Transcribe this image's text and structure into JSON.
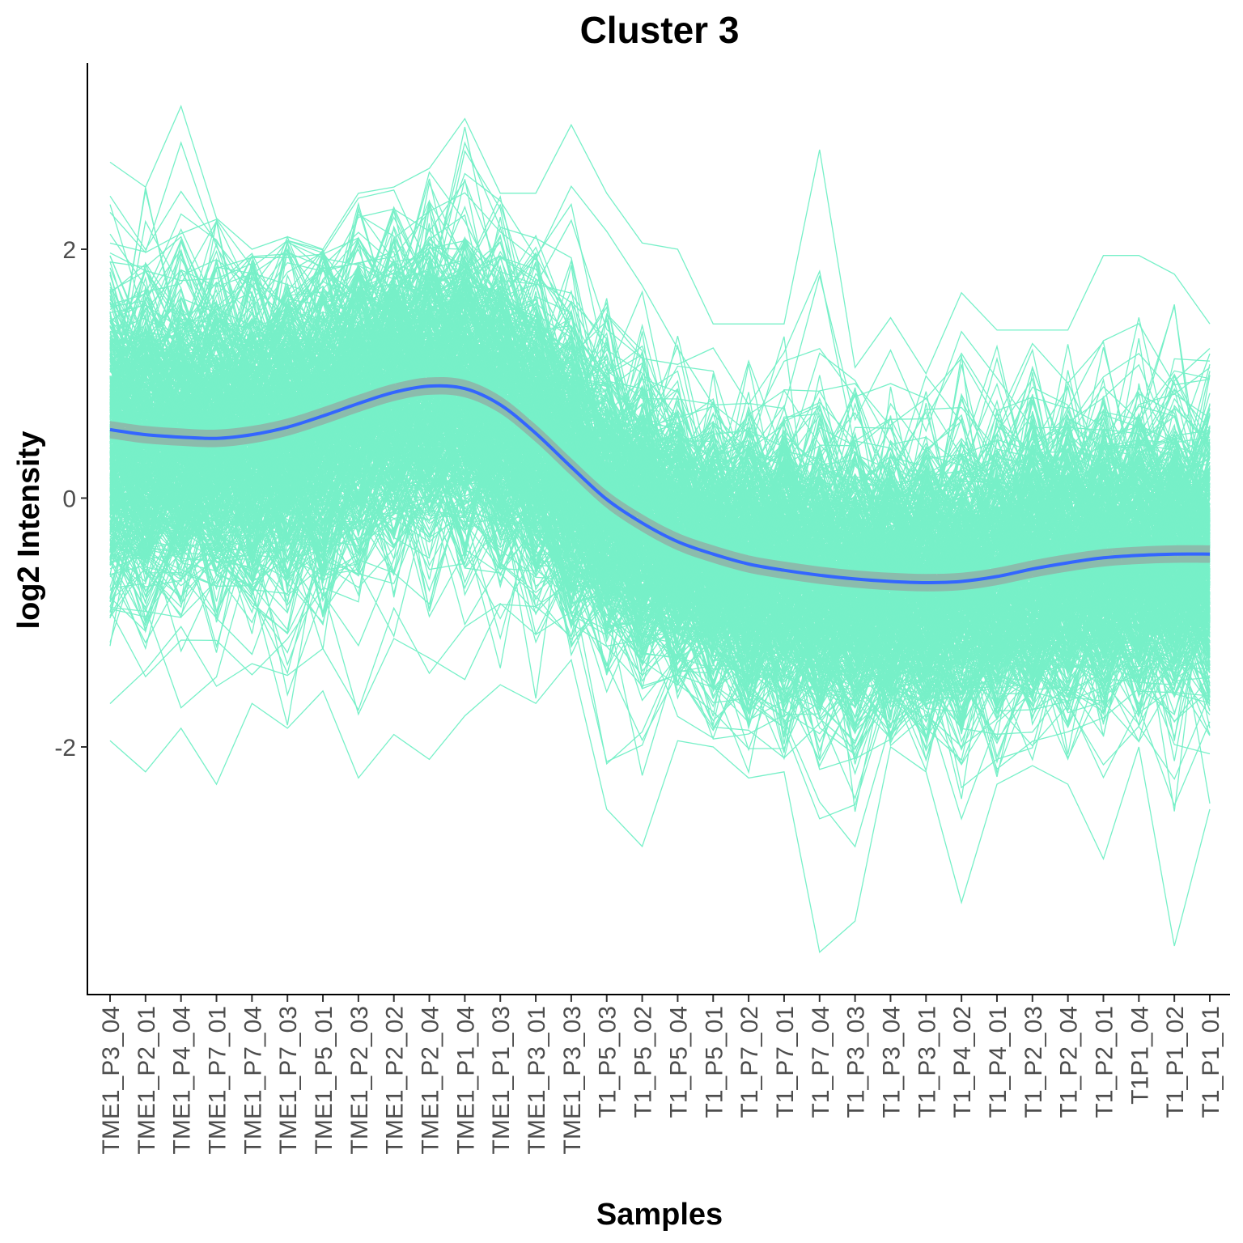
{
  "chart_data": {
    "type": "line",
    "title": "Cluster 3",
    "xlabel": "Samples",
    "ylabel": "log2 Intensity",
    "x": [
      "TME1_P3_04",
      "TME1_P2_01",
      "TME1_P4_04",
      "TME1_P7_01",
      "TME1_P7_04",
      "TME1_P7_03",
      "TME1_P5_01",
      "TME1_P2_03",
      "TME1_P2_02",
      "TME1_P2_04",
      "TME1_P1_04",
      "TME1_P1_03",
      "TME1_P3_01",
      "TME1_P3_03",
      "T1_P5_03",
      "T1_P5_02",
      "T1_P5_04",
      "T1_P5_01",
      "T1_P7_02",
      "T1_P7_01",
      "T1_P7_04",
      "T1_P3_03",
      "T1_P3_04",
      "T1_P3_01",
      "T1_P4_02",
      "T1_P4_01",
      "T1_P2_03",
      "T1_P2_04",
      "T1_P2_01",
      "T1P1_04",
      "T1_P1_02",
      "T1_P1_01"
    ],
    "ylim": [
      -3.9,
      3.5
    ],
    "yticks": [
      -2,
      0,
      2
    ],
    "grid": false,
    "legend": "none",
    "series_description_count": 600,
    "profile_color": "#77F0C8",
    "trend": {
      "values": [
        0.55,
        0.51,
        0.49,
        0.48,
        0.51,
        0.57,
        0.66,
        0.76,
        0.85,
        0.9,
        0.88,
        0.75,
        0.52,
        0.25,
        -0.01,
        -0.2,
        -0.35,
        -0.45,
        -0.53,
        -0.58,
        -0.62,
        -0.65,
        -0.67,
        -0.68,
        -0.67,
        -0.63,
        -0.57,
        -0.52,
        -0.48,
        -0.46,
        -0.45,
        -0.45
      ],
      "color": "#3366FF",
      "ribbon_color": "#999999",
      "ribbon_halfwidth": 0.07
    },
    "profile_spread": {
      "min": [
        -1.95,
        -2.2,
        -1.85,
        -2.3,
        -1.65,
        -1.85,
        -1.55,
        -2.25,
        -1.9,
        -2.1,
        -1.75,
        -1.5,
        -1.65,
        -1.3,
        -2.5,
        -2.8,
        -1.95,
        -2.0,
        -2.25,
        -2.2,
        -3.65,
        -3.4,
        -2.0,
        -2.2,
        -3.25,
        -2.3,
        -2.15,
        -2.3,
        -2.9,
        -2.0,
        -3.6,
        -2.5
      ],
      "max": [
        2.7,
        2.5,
        3.15,
        2.25,
        2.0,
        2.1,
        2.0,
        2.45,
        2.5,
        2.65,
        3.05,
        2.45,
        2.45,
        3.0,
        2.45,
        2.05,
        2.0,
        1.4,
        1.4,
        1.4,
        2.8,
        1.05,
        1.45,
        1.0,
        1.65,
        1.35,
        1.35,
        1.35,
        1.95,
        1.95,
        1.8,
        1.4
      ]
    }
  }
}
